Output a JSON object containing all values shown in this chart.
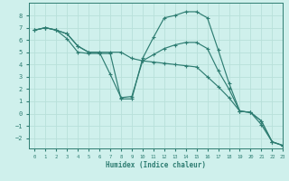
{
  "xlabel": "Humidex (Indice chaleur)",
  "ylabel": "",
  "xlim": [
    -0.5,
    23
  ],
  "ylim": [
    -2.8,
    9.0
  ],
  "yticks": [
    -2,
    -1,
    0,
    1,
    2,
    3,
    4,
    5,
    6,
    7,
    8
  ],
  "xticks": [
    0,
    1,
    2,
    3,
    4,
    5,
    6,
    7,
    8,
    9,
    10,
    11,
    12,
    13,
    14,
    15,
    16,
    17,
    18,
    19,
    20,
    21,
    22,
    23
  ],
  "bg_color": "#cff0ec",
  "grid_major_color": "#b8e0da",
  "line_color": "#2e7d72",
  "line1_x": [
    0,
    1,
    2,
    3,
    4,
    5,
    6,
    7,
    8,
    9,
    10,
    11,
    12,
    13,
    14,
    15,
    16,
    17,
    18,
    19,
    20,
    21,
    22,
    23
  ],
  "line1_y": [
    6.8,
    7.0,
    6.8,
    6.1,
    5.0,
    4.9,
    4.9,
    4.9,
    1.2,
    1.2,
    4.5,
    6.2,
    7.8,
    8.0,
    8.3,
    8.3,
    7.8,
    5.2,
    2.5,
    0.2,
    0.1,
    -0.9,
    -2.3,
    -2.6
  ],
  "line2_x": [
    0,
    1,
    2,
    3,
    4,
    5,
    6,
    7,
    8,
    9,
    10,
    11,
    12,
    13,
    14,
    15,
    16,
    17,
    18,
    19,
    20,
    21,
    22,
    23
  ],
  "line2_y": [
    6.8,
    7.0,
    6.8,
    6.5,
    5.5,
    5.0,
    5.0,
    3.2,
    1.3,
    1.4,
    4.3,
    4.8,
    5.3,
    5.6,
    5.8,
    5.8,
    5.3,
    3.5,
    2.0,
    0.2,
    0.1,
    -0.6,
    -2.3,
    -2.6
  ],
  "line3_x": [
    0,
    1,
    2,
    3,
    4,
    5,
    6,
    7,
    8,
    9,
    10,
    11,
    12,
    13,
    14,
    15,
    16,
    17,
    18,
    19,
    20,
    21,
    22,
    23
  ],
  "line3_y": [
    6.8,
    7.0,
    6.8,
    6.5,
    5.5,
    5.0,
    5.0,
    5.0,
    5.0,
    4.5,
    4.3,
    4.2,
    4.1,
    4.0,
    3.9,
    3.8,
    3.0,
    2.2,
    1.3,
    0.2,
    0.1,
    -0.6,
    -2.3,
    -2.6
  ]
}
